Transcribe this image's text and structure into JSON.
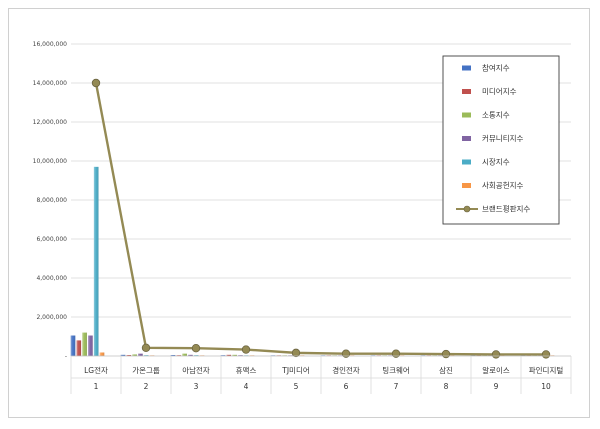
{
  "chart_data": {
    "type": "bar",
    "title": "",
    "xlabel": "",
    "ylabel": "",
    "ylim": [
      0,
      16000000
    ],
    "yticks": [
      "-",
      "2,000,000",
      "4,000,000",
      "6,000,000",
      "8,000,000",
      "10,000,000",
      "12,000,000",
      "14,000,000",
      "16,000,000"
    ],
    "grid": true,
    "legend_position": "top-right",
    "categories": [
      "LG전자",
      "가온그룹",
      "아남전자",
      "휴맥스",
      "TJ미디어",
      "경인전자",
      "팅크웨어",
      "삼진",
      "알로이스",
      "파인디지털"
    ],
    "ranks": [
      "1",
      "2",
      "3",
      "4",
      "5",
      "6",
      "7",
      "8",
      "9",
      "10"
    ],
    "series": [
      {
        "name": "참여지수",
        "type": "bar",
        "color": "#4472c4",
        "values": [
          1050000,
          60000,
          50000,
          40000,
          20000,
          15000,
          15000,
          12000,
          10000,
          10000
        ]
      },
      {
        "name": "미디어지수",
        "type": "bar",
        "color": "#c0504d",
        "values": [
          800000,
          50000,
          40000,
          60000,
          20000,
          15000,
          15000,
          12000,
          10000,
          10000
        ]
      },
      {
        "name": "소통지수",
        "type": "bar",
        "color": "#9bbb59",
        "values": [
          1200000,
          80000,
          120000,
          60000,
          30000,
          20000,
          20000,
          15000,
          12000,
          12000
        ]
      },
      {
        "name": "커뮤니티지수",
        "type": "bar",
        "color": "#8064a2",
        "values": [
          1050000,
          120000,
          60000,
          40000,
          20000,
          15000,
          15000,
          12000,
          10000,
          10000
        ]
      },
      {
        "name": "시장지수",
        "type": "bar",
        "color": "#4bacc6",
        "values": [
          9700000,
          40000,
          40000,
          30000,
          20000,
          15000,
          15000,
          12000,
          10000,
          10000
        ]
      },
      {
        "name": "사회공헌지수",
        "type": "bar",
        "color": "#f79646",
        "values": [
          180000,
          10000,
          10000,
          10000,
          5000,
          5000,
          5000,
          5000,
          5000,
          5000
        ]
      },
      {
        "name": "브랜드평판지수",
        "type": "line",
        "color": "#948a54",
        "values": [
          14000000,
          420000,
          400000,
          330000,
          160000,
          120000,
          120000,
          100000,
          80000,
          80000
        ]
      }
    ]
  }
}
